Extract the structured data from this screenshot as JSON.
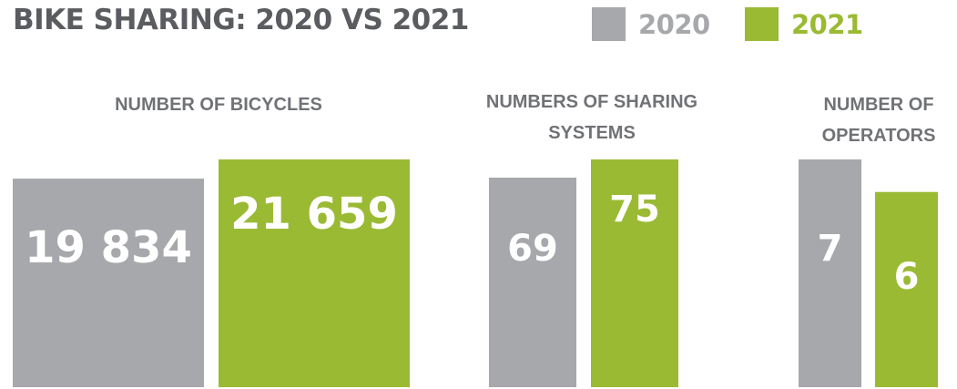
{
  "title": "BIKE SHARING: 2020 VS 2021",
  "colors": {
    "title": "#5a5c60",
    "panel_title": "#707276",
    "series_2020": "#a6a8ab",
    "series_2021": "#9aba34",
    "label_text": "#ffffff"
  },
  "chart_data": {
    "type": "bar",
    "title": "BIKE SHARING: 2020 VS 2021",
    "legend": {
      "position": "top-right",
      "entries": [
        "2020",
        "2021"
      ]
    },
    "series": [
      {
        "name": "2020",
        "color": "#a6a8ab"
      },
      {
        "name": "2021",
        "color": "#9aba34"
      }
    ],
    "panels": [
      {
        "title_lines": [
          "NUMBER OF BICYCLES"
        ],
        "values": [
          19834,
          21659
        ],
        "labels": [
          "19 834",
          "21 659"
        ]
      },
      {
        "title_lines": [
          "NUMBERS OF SHARING",
          "SYSTEMS"
        ],
        "values": [
          69,
          75
        ],
        "labels": [
          "69",
          "75"
        ]
      },
      {
        "title_lines": [
          "NUMBER OF",
          "OPERATORS"
        ],
        "values": [
          7,
          6
        ],
        "labels": [
          "7",
          "6"
        ]
      }
    ]
  }
}
